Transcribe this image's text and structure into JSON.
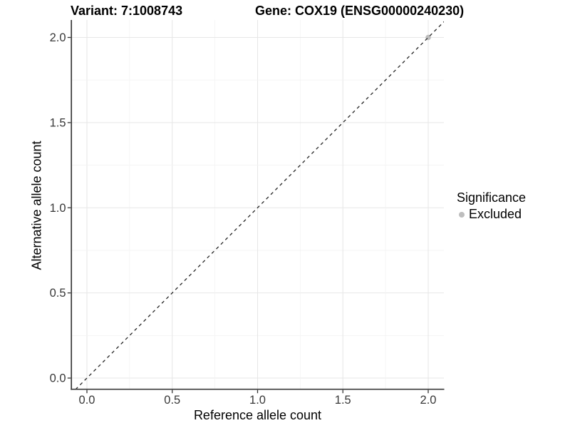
{
  "chart_data": {
    "type": "scatter",
    "titles": {
      "left": "Variant: 7:1008743",
      "right": "Gene: COX19 (ENSG00000240230)"
    },
    "xlabel": "Reference allele count",
    "ylabel": "Alternative allele count",
    "xlim": [
      -0.09,
      2.1
    ],
    "ylim": [
      -0.07,
      2.1
    ],
    "x_ticks": [
      0.0,
      0.5,
      1.0,
      1.5,
      2.0
    ],
    "y_ticks": [
      0.0,
      0.5,
      1.0,
      1.5,
      2.0
    ],
    "grid": {
      "major_step": 0.5,
      "minor_step": 0.25,
      "major_color": "#e7e7e7",
      "minor_color": "#f3f3f3"
    },
    "identity_line": {
      "slope": 1,
      "intercept": 0,
      "style": "dashed",
      "color": "#262626"
    },
    "series": [
      {
        "name": "Excluded",
        "marker": "circle",
        "color": "#bebebe",
        "points": [
          [
            2.0,
            2.0
          ]
        ]
      }
    ],
    "legend": {
      "title": "Significance",
      "position": "right",
      "items": [
        {
          "label": "Excluded",
          "color": "#bebebe"
        }
      ]
    },
    "axis": {
      "line_color": "#3a3a3a",
      "tick_color": "#333333",
      "tick_label_color": "#383838"
    }
  }
}
